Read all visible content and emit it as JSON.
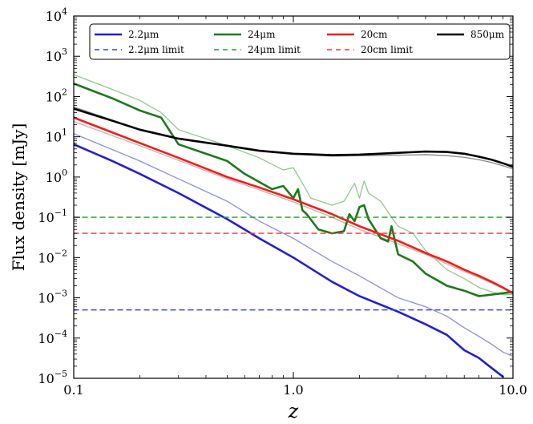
{
  "chart_data": {
    "type": "line",
    "xscale": "log",
    "yscale": "log",
    "xlim": [
      0.1,
      10.0
    ],
    "ylim": [
      1e-05,
      10000.0
    ],
    "xlabel": "z",
    "ylabel": "Flux density [mJy]",
    "x_ticks": [
      0.1,
      1.0,
      10.0
    ],
    "x_tick_labels": [
      "0.1",
      "1.0",
      "10.0"
    ],
    "y_ticks": [
      1e-05,
      0.0001,
      0.001,
      0.01,
      0.1,
      1,
      10,
      100,
      1000,
      10000
    ],
    "y_tick_labels": [
      {
        "base": "10",
        "exp": "−5"
      },
      {
        "base": "10",
        "exp": "−4"
      },
      {
        "base": "10",
        "exp": "−3"
      },
      {
        "base": "10",
        "exp": "−2"
      },
      {
        "base": "10",
        "exp": "−1"
      },
      {
        "base": "10",
        "exp": "0"
      },
      {
        "base": "10",
        "exp": "1"
      },
      {
        "base": "10",
        "exp": "2"
      },
      {
        "base": "10",
        "exp": "3"
      },
      {
        "base": "10",
        "exp": "4"
      }
    ],
    "legend_position": "top",
    "legend": [
      {
        "label": "2.2μm",
        "color": "#1f1fd6",
        "style": "solid"
      },
      {
        "label": "24μm",
        "color": "#1a7a1a",
        "style": "solid"
      },
      {
        "label": "20cm",
        "color": "#e8221c",
        "style": "solid"
      },
      {
        "label": "850μm",
        "color": "#000000",
        "style": "solid"
      },
      {
        "label": "2.2μm limit",
        "color": "#3b3bf0",
        "style": "dashed"
      },
      {
        "label": "24μm limit",
        "color": "#2b9a2b",
        "style": "dashed"
      },
      {
        "label": "20cm limit",
        "color": "#ef3b3b",
        "style": "dashed"
      }
    ],
    "series": [
      {
        "name": "2.2μm",
        "color": "#1f1fd6",
        "width": 2.6,
        "style": "solid",
        "x": [
          0.1,
          0.15,
          0.2,
          0.3,
          0.5,
          0.7,
          1.0,
          1.5,
          2.0,
          3.0,
          4.0,
          5.0,
          6.0,
          7.0,
          8.0,
          9.0
        ],
        "y": [
          6.5,
          2.5,
          1.2,
          0.4,
          0.09,
          0.03,
          0.01,
          0.0025,
          0.0011,
          0.00045,
          0.00022,
          0.00012,
          5e-05,
          3.2e-05,
          1.8e-05,
          1.1e-05
        ]
      },
      {
        "name": "",
        "color": "#8c8cf0",
        "width": 1.3,
        "style": "solid",
        "x": [
          0.1,
          0.2,
          0.3,
          0.5,
          0.7,
          1.0,
          1.5,
          2.0,
          3.0,
          4.0,
          5.0,
          6.0,
          7.0,
          8.0,
          9.0,
          10.0
        ],
        "y": [
          12,
          2.5,
          0.9,
          0.25,
          0.08,
          0.03,
          0.008,
          0.0035,
          0.001,
          0.0006,
          0.00035,
          0.00018,
          0.00011,
          7e-05,
          4.5e-05,
          3.5e-05
        ]
      },
      {
        "name": "24μm",
        "color": "#1a7a1a",
        "width": 2.6,
        "style": "solid",
        "x": [
          0.1,
          0.15,
          0.2,
          0.25,
          0.3,
          0.5,
          0.6,
          0.8,
          0.9,
          1.0,
          1.05,
          1.1,
          1.15,
          1.3,
          1.5,
          1.7,
          1.8,
          1.9,
          2.0,
          2.1,
          2.2,
          2.5,
          2.7,
          2.8,
          3.0,
          3.5,
          4.0,
          5.0,
          6.0,
          7.0,
          8.0,
          9.0,
          10.0
        ],
        "y": [
          210,
          90,
          45,
          30,
          6.5,
          2.5,
          1.2,
          0.5,
          0.6,
          0.3,
          0.5,
          0.15,
          0.12,
          0.05,
          0.04,
          0.045,
          0.12,
          0.08,
          0.18,
          0.2,
          0.09,
          0.03,
          0.025,
          0.06,
          0.012,
          0.008,
          0.004,
          0.002,
          0.0015,
          0.0011,
          0.0012,
          0.0013,
          0.0014
        ]
      },
      {
        "name": "",
        "color": "#8fca8f",
        "width": 1.3,
        "style": "solid",
        "x": [
          0.1,
          0.15,
          0.2,
          0.25,
          0.3,
          0.5,
          0.7,
          0.9,
          1.0,
          1.1,
          1.2,
          1.5,
          1.7,
          1.9,
          2.0,
          2.1,
          2.2,
          2.5,
          2.8,
          3.0,
          3.5,
          4.0,
          5.0,
          6.0,
          7.0,
          8.0,
          9.0,
          10.0
        ],
        "y": [
          350,
          150,
          80,
          40,
          15,
          6,
          3,
          1.5,
          1.7,
          0.7,
          0.3,
          0.2,
          0.25,
          0.7,
          0.3,
          0.8,
          0.4,
          0.25,
          0.1,
          0.06,
          0.04,
          0.015,
          0.005,
          0.003,
          0.0018,
          0.0014,
          0.0012,
          0.0012
        ]
      },
      {
        "name": "20cm",
        "color": "#e8221c",
        "width": 2.6,
        "style": "solid",
        "x": [
          0.1,
          0.2,
          0.3,
          0.5,
          0.7,
          1.0,
          1.5,
          2.0,
          3.0,
          4.0,
          5.0,
          6.0,
          7.0,
          8.0,
          9.0,
          10.0
        ],
        "y": [
          30,
          7,
          3,
          1.0,
          0.55,
          0.28,
          0.12,
          0.06,
          0.026,
          0.013,
          0.008,
          0.005,
          0.0035,
          0.0025,
          0.0018,
          0.0013
        ]
      },
      {
        "name": "",
        "color": "#f0a0a0",
        "width": 1.3,
        "style": "solid",
        "x": [
          0.1,
          0.2,
          0.3,
          0.5,
          0.7,
          1.0,
          1.5,
          2.0,
          3.0,
          4.0,
          5.0,
          6.0,
          7.0,
          8.0,
          9.0,
          10.0
        ],
        "y": [
          24,
          6,
          2.6,
          0.9,
          0.48,
          0.24,
          0.1,
          0.05,
          0.022,
          0.012,
          0.007,
          0.0045,
          0.0032,
          0.0023,
          0.0017,
          0.0012
        ]
      },
      {
        "name": "850μm",
        "color": "#000000",
        "width": 2.6,
        "style": "solid",
        "x": [
          0.1,
          0.15,
          0.2,
          0.3,
          0.5,
          0.7,
          1.0,
          1.5,
          2.0,
          3.0,
          4.0,
          5.0,
          6.0,
          7.0,
          8.0,
          9.0,
          10.0
        ],
        "y": [
          50,
          25,
          15,
          9,
          6,
          4.5,
          3.8,
          3.5,
          3.6,
          4.0,
          4.3,
          4.2,
          3.8,
          3.2,
          2.7,
          2.2,
          1.8
        ]
      },
      {
        "name": "",
        "color": "#888888",
        "width": 1.3,
        "style": "solid",
        "x": [
          0.1,
          0.15,
          0.2,
          0.3,
          0.5,
          0.7,
          1.0,
          1.5,
          2.0,
          3.0,
          4.0,
          5.0,
          6.0,
          7.0,
          8.0,
          9.0,
          10.0
        ],
        "y": [
          55,
          26,
          15.5,
          9.2,
          6,
          4.4,
          3.7,
          3.3,
          3.4,
          3.5,
          3.6,
          3.4,
          3.1,
          2.7,
          2.3,
          1.9,
          1.6
        ]
      },
      {
        "name": "2.2μm limit",
        "color": "#3b3bf0",
        "width": 1.4,
        "style": "dashed",
        "x": [
          0.1,
          10.0
        ],
        "y": [
          0.0005,
          0.0005
        ]
      },
      {
        "name": "24μm limit",
        "color": "#2b9a2b",
        "width": 1.4,
        "style": "dashed",
        "x": [
          0.1,
          10.0
        ],
        "y": [
          0.1,
          0.1
        ]
      },
      {
        "name": "20cm limit",
        "color": "#ef3b3b",
        "width": 1.4,
        "style": "dashed",
        "x": [
          0.1,
          10.0
        ],
        "y": [
          0.04,
          0.04
        ]
      }
    ]
  }
}
